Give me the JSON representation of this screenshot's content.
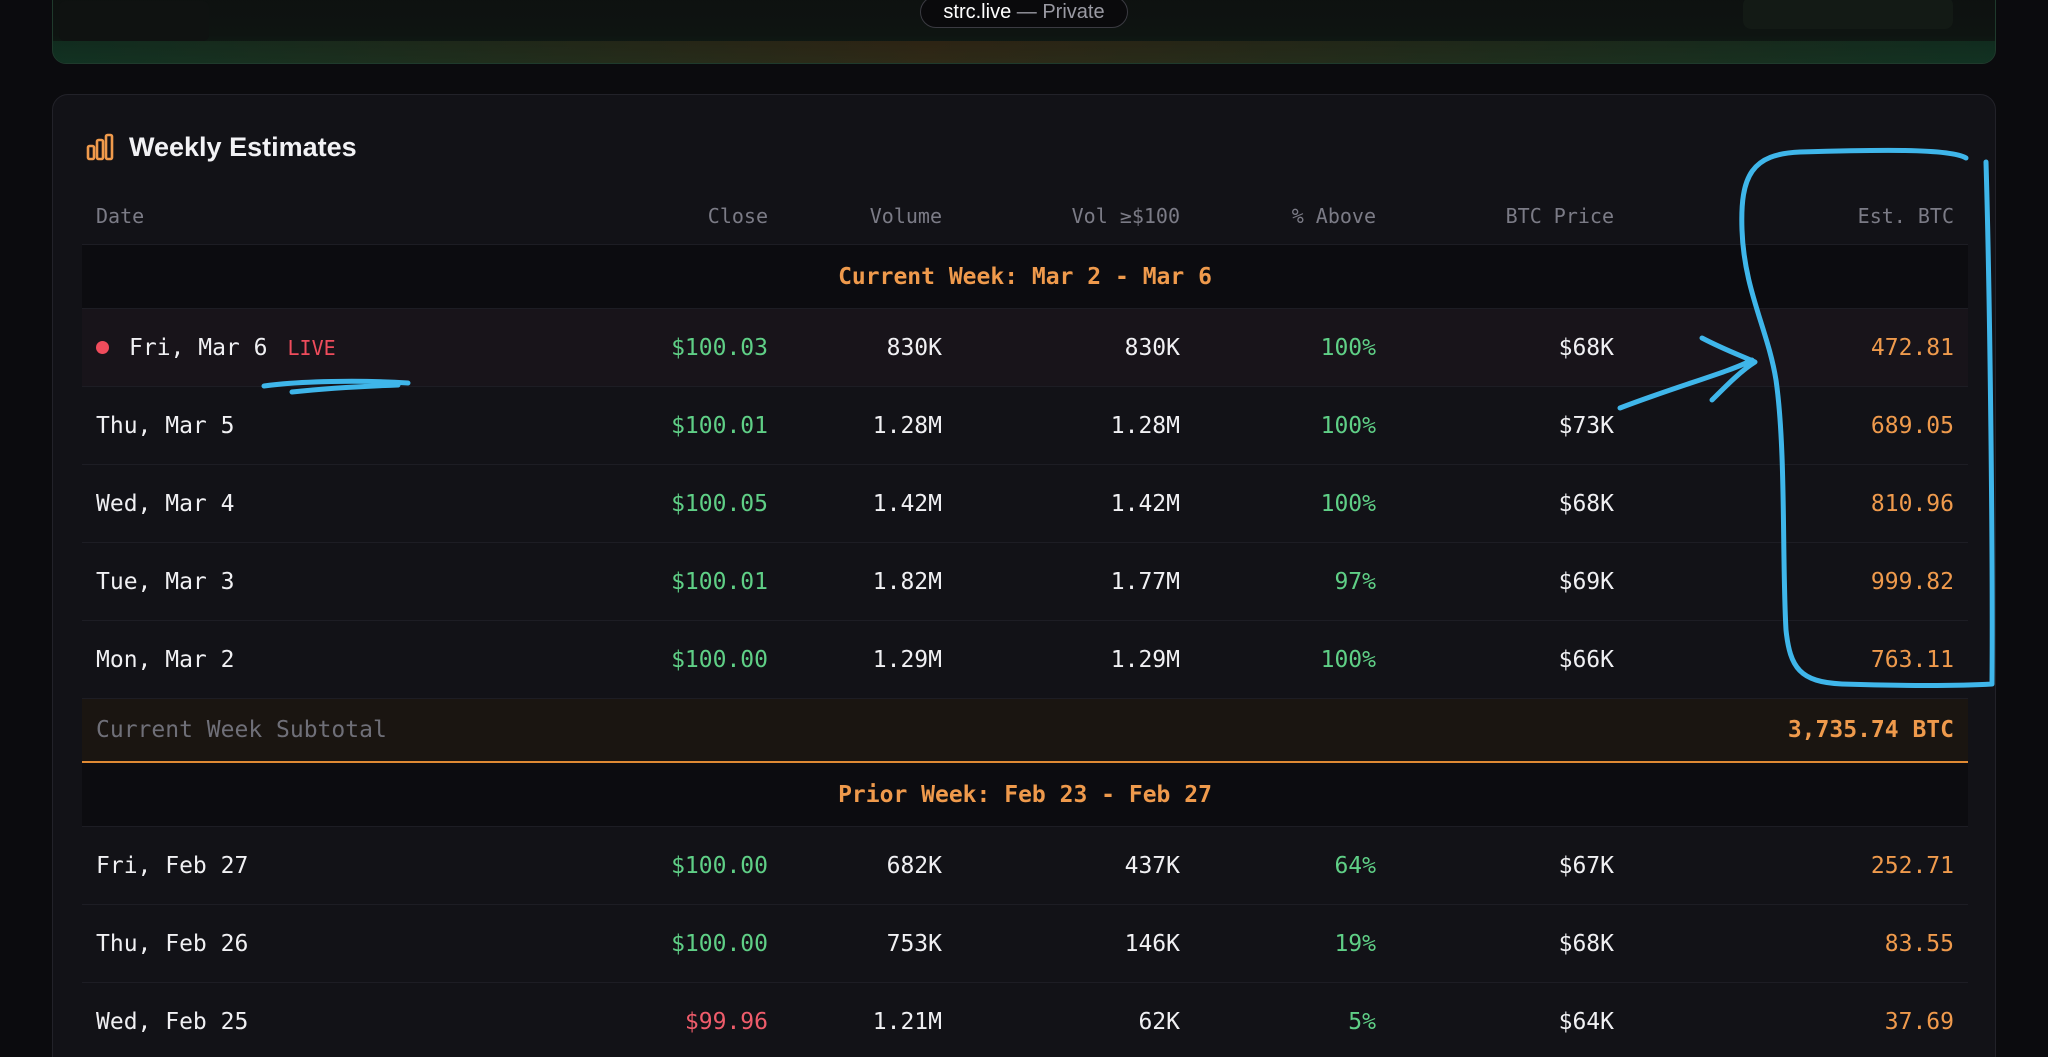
{
  "site": {
    "host": "strc.live",
    "separator": " — ",
    "visibility": "Private"
  },
  "card": {
    "title": "Weekly Estimates",
    "icon": "bar-chart-icon"
  },
  "columns": {
    "date": "Date",
    "close": "Close",
    "volume": "Volume",
    "vol100": "Vol ≥$100",
    "above": "% Above",
    "btc_price": "BTC Price",
    "est_btc": "Est. BTC"
  },
  "current_week": {
    "heading": "Current Week: Mar 2 - Mar 6",
    "rows": [
      {
        "date": "Fri, Mar 6",
        "live": "LIVE",
        "close": "$100.03",
        "volume": "830K",
        "vol100": "830K",
        "above": "100%",
        "btc_price": "$68K",
        "est_btc": "472.81"
      },
      {
        "date": "Thu, Mar 5",
        "close": "$100.01",
        "volume": "1.28M",
        "vol100": "1.28M",
        "above": "100%",
        "btc_price": "$73K",
        "est_btc": "689.05"
      },
      {
        "date": "Wed, Mar 4",
        "close": "$100.05",
        "volume": "1.42M",
        "vol100": "1.42M",
        "above": "100%",
        "btc_price": "$68K",
        "est_btc": "810.96"
      },
      {
        "date": "Tue, Mar 3",
        "close": "$100.01",
        "volume": "1.82M",
        "vol100": "1.77M",
        "above": "97%",
        "btc_price": "$69K",
        "est_btc": "999.82"
      },
      {
        "date": "Mon, Mar 2",
        "close": "$100.00",
        "volume": "1.29M",
        "vol100": "1.29M",
        "above": "100%",
        "btc_price": "$66K",
        "est_btc": "763.11"
      }
    ],
    "subtotal_label": "Current Week Subtotal",
    "subtotal_value": "3,735.74 BTC"
  },
  "prior_week": {
    "heading": "Prior Week: Feb 23 - Feb 27",
    "rows": [
      {
        "date": "Fri, Feb 27",
        "close": "$100.00",
        "volume": "682K",
        "vol100": "437K",
        "above": "64%",
        "btc_price": "$67K",
        "est_btc": "252.71"
      },
      {
        "date": "Thu, Feb 26",
        "close": "$100.00",
        "volume": "753K",
        "vol100": "146K",
        "above": "19%",
        "btc_price": "$68K",
        "est_btc": "83.55"
      },
      {
        "date": "Wed, Feb 25",
        "close": "$99.96",
        "volume": "1.21M",
        "vol100": "62K",
        "above": "5%",
        "btc_price": "$64K",
        "est_btc": "37.69"
      }
    ]
  },
  "colors": {
    "up": "#5fcf86",
    "down": "#ef5c6b",
    "accent": "#ef9a4c",
    "live": "#ef4c5c",
    "annotation": "#3fb6ea"
  }
}
